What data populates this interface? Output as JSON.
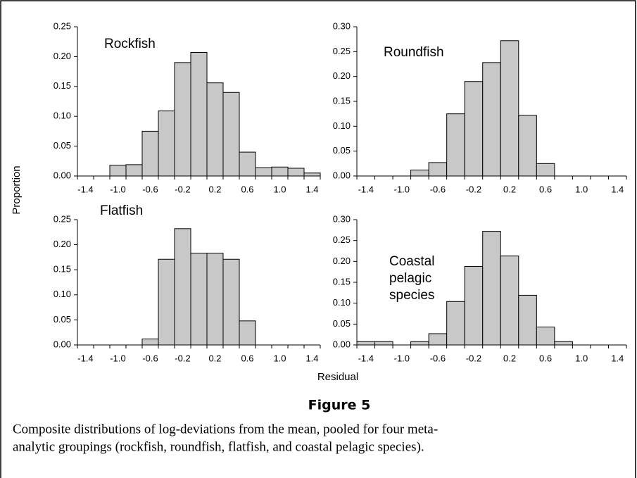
{
  "figure": {
    "ylabel": "Proportion",
    "xlabel": "Residual",
    "title": "Figure 5",
    "caption": [
      "Composite distributions of log-deviations from the mean, pooled for four meta-",
      "analytic groupings (rockfish, roundfish, flatfish, and coastal pelagic species)."
    ]
  },
  "chart_data": [
    {
      "type": "bar",
      "label_lines": [
        "Rockfish"
      ],
      "color": "#c8c8c8",
      "categories": [
        "-1.4",
        null,
        "-1.0",
        null,
        "-0.6",
        null,
        "-0.2",
        null,
        "0.2",
        null,
        "0.6",
        null,
        "1.0",
        null,
        "1.4"
      ],
      "values": [
        0,
        0,
        0.018,
        0.019,
        0.075,
        0.109,
        0.19,
        0.207,
        0.156,
        0.14,
        0.04,
        0.014,
        0.015,
        0.013,
        0.005
      ],
      "ylim": [
        0,
        0.25
      ],
      "yticks": [
        {
          "value": 0,
          "label": "0.00"
        },
        {
          "value": 0.05,
          "label": "0.05"
        },
        {
          "value": 0.1,
          "label": "0.10"
        },
        {
          "value": 0.15,
          "label": "0.15"
        },
        {
          "value": 0.2,
          "label": "0.20"
        },
        {
          "value": 0.25,
          "label": "0.25"
        }
      ]
    },
    {
      "type": "bar",
      "label_lines": [
        "Roundfish"
      ],
      "color": "#c8c8c8",
      "categories": [
        "-1.4",
        null,
        "-1.0",
        null,
        "-0.6",
        null,
        "-0.2",
        null,
        "0.2",
        null,
        "0.6",
        null,
        "1.0",
        null,
        "1.4"
      ],
      "values": [
        0,
        0,
        0,
        0.012,
        0.027,
        0.125,
        0.19,
        0.228,
        0.272,
        0.122,
        0.025,
        0,
        0,
        0,
        0
      ],
      "ylim": [
        0,
        0.3
      ],
      "yticks": [
        {
          "value": 0,
          "label": "0.00"
        },
        {
          "value": 0.05,
          "label": "0.05"
        },
        {
          "value": 0.1,
          "label": "0.10"
        },
        {
          "value": 0.15,
          "label": "0.15"
        },
        {
          "value": 0.2,
          "label": "0.20"
        },
        {
          "value": 0.25,
          "label": "0.25"
        },
        {
          "value": 0.3,
          "label": "0.30"
        }
      ]
    },
    {
      "type": "bar",
      "label_lines": [
        "Flatfish"
      ],
      "color": "#c8c8c8",
      "categories": [
        "-1.4",
        null,
        "-1.0",
        null,
        "-0.6",
        null,
        "-0.2",
        null,
        "0.2",
        null,
        "0.6",
        null,
        "1.0",
        null,
        "1.4"
      ],
      "values": [
        0,
        0,
        0,
        0,
        0.012,
        0.171,
        0.232,
        0.183,
        0.183,
        0.171,
        0.048,
        0,
        0,
        0,
        0
      ],
      "ylim": [
        0,
        0.25
      ],
      "yticks": [
        {
          "value": 0,
          "label": "0.00"
        },
        {
          "value": 0.05,
          "label": "0.05"
        },
        {
          "value": 0.1,
          "label": "0.10"
        },
        {
          "value": 0.15,
          "label": "0.15"
        },
        {
          "value": 0.2,
          "label": "0.20"
        },
        {
          "value": 0.25,
          "label": "0.25"
        }
      ]
    },
    {
      "type": "bar",
      "label_lines": [
        "Coastal",
        "pelagic",
        "species"
      ],
      "color": "#c8c8c8",
      "categories": [
        "-1.4",
        null,
        "-1.0",
        null,
        "-0.6",
        null,
        "-0.2",
        null,
        "0.2",
        null,
        "0.6",
        null,
        "1.0",
        null,
        "1.4"
      ],
      "values": [
        0.008,
        0.008,
        0,
        0.008,
        0.027,
        0.104,
        0.188,
        0.272,
        0.213,
        0.119,
        0.043,
        0.008,
        0,
        0,
        0
      ],
      "ylim": [
        0,
        0.3
      ],
      "yticks": [
        {
          "value": 0,
          "label": "0.00"
        },
        {
          "value": 0.05,
          "label": "0.05"
        },
        {
          "value": 0.1,
          "label": "0.10"
        },
        {
          "value": 0.15,
          "label": "0.15"
        },
        {
          "value": 0.2,
          "label": "0.20"
        },
        {
          "value": 0.25,
          "label": "0.25"
        },
        {
          "value": 0.3,
          "label": "0.30"
        }
      ]
    }
  ]
}
